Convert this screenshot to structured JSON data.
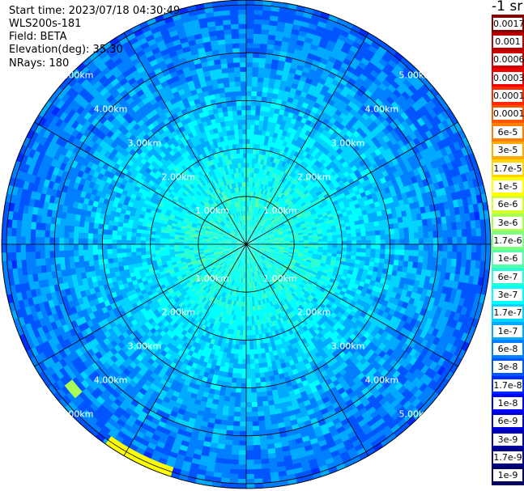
{
  "header": {
    "start_time": "Start time: 2023/07/18 04:30:49",
    "instrument": "WLS200s-181",
    "field": "Field: BETA",
    "elevation": "Elevation(deg): 35.30",
    "nrays": "NRays: 180"
  },
  "colorbar": {
    "unit": "-1 sr",
    "bins": [
      {
        "label": "0.0017",
        "color": "#800000"
      },
      {
        "label": "0.001",
        "color": "#b80000"
      },
      {
        "label": "0.0006",
        "color": "#d00000"
      },
      {
        "label": "0.0003",
        "color": "#f00000"
      },
      {
        "label": "0.00017",
        "color": "#ff2a00"
      },
      {
        "label": "0.0001",
        "color": "#ff5500"
      },
      {
        "label": "6e-5",
        "color": "#ff8000"
      },
      {
        "label": "3e-5",
        "color": "#ffaa00"
      },
      {
        "label": "1.7e-5",
        "color": "#ffd400"
      },
      {
        "label": "1e-5",
        "color": "#ffff00"
      },
      {
        "label": "6e-6",
        "color": "#d4ff2a"
      },
      {
        "label": "3e-6",
        "color": "#aaff55"
      },
      {
        "label": "1.7e-6",
        "color": "#7fff80"
      },
      {
        "label": "1e-6",
        "color": "#55ffaa"
      },
      {
        "label": "6e-7",
        "color": "#2affd4"
      },
      {
        "label": "3e-7",
        "color": "#00ffff"
      },
      {
        "label": "1.7e-7",
        "color": "#00d4ff"
      },
      {
        "label": "1e-7",
        "color": "#00aaff"
      },
      {
        "label": "6e-8",
        "color": "#0080ff"
      },
      {
        "label": "3e-8",
        "color": "#0055ff"
      },
      {
        "label": "1.7e-8",
        "color": "#002aff"
      },
      {
        "label": "1e-8",
        "color": "#0000ff"
      },
      {
        "label": "6e-9",
        "color": "#0000d4"
      },
      {
        "label": "3e-9",
        "color": "#0000aa"
      },
      {
        "label": "1.7e-9",
        "color": "#000080"
      },
      {
        "label": "1e-9",
        "color": "#000060"
      }
    ]
  },
  "chart_data": {
    "type": "heatmap",
    "projection": "polar",
    "range_rings": [
      {
        "range_km": 1.0,
        "label": "1.00km"
      },
      {
        "range_km": 2.0,
        "label": "2.00km"
      },
      {
        "range_km": 3.0,
        "label": "3.00km"
      },
      {
        "range_km": 4.0,
        "label": "4.00km"
      },
      {
        "range_km": 5.0,
        "label": "5.00km"
      }
    ],
    "max_range_km": 5.1,
    "spokes_azimuth_deg": [
      0,
      30,
      60,
      90,
      120,
      150,
      180,
      210,
      240,
      270,
      300,
      330
    ],
    "ring_label_azimuths_deg": [
      315,
      45,
      135,
      225
    ],
    "beta_by_range_km": [
      {
        "range_km": 0.5,
        "beta": 6e-07
      },
      {
        "range_km": 1.0,
        "beta": 6e-07
      },
      {
        "range_km": 2.0,
        "beta": 3e-07
      },
      {
        "range_km": 3.0,
        "beta": 1.7e-07
      },
      {
        "range_km": 4.0,
        "beta": 1e-07
      },
      {
        "range_km": 5.0,
        "beta": 6e-08
      }
    ],
    "features": [
      {
        "azimuth_from_deg": 198,
        "azimuth_to_deg": 215,
        "range_km": 5.0,
        "beta": 1e-05
      },
      {
        "azimuth_from_deg": 228,
        "azimuth_to_deg": 232,
        "range_km": 4.7,
        "beta": 3e-06
      }
    ]
  }
}
